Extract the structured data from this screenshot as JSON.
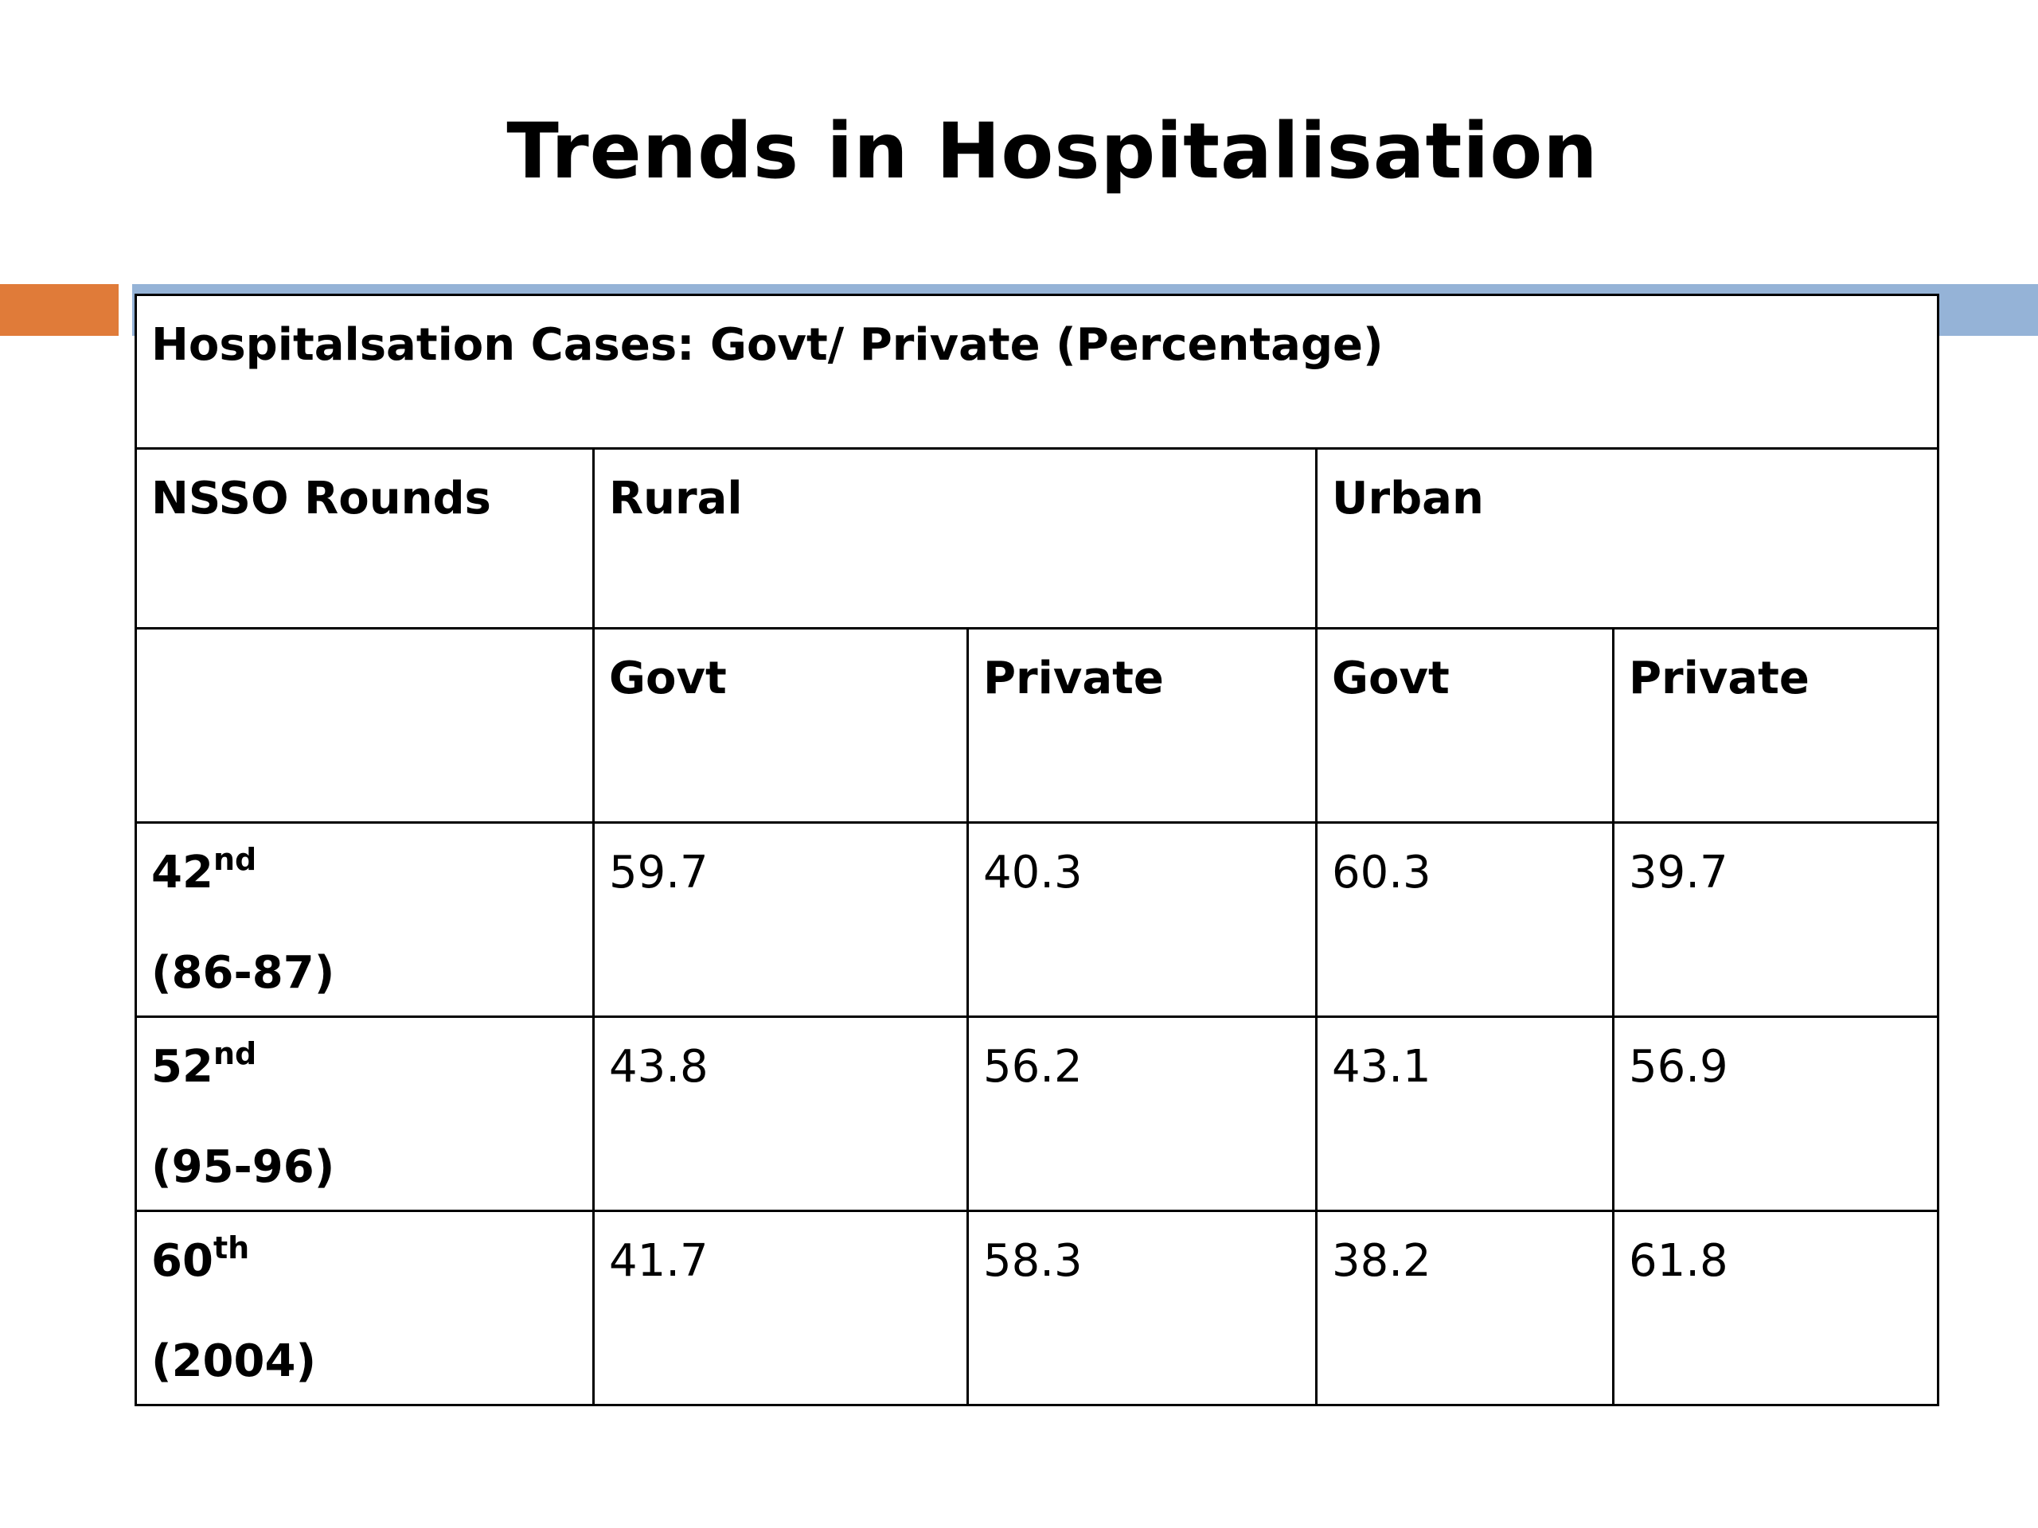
{
  "slide": {
    "title": "Trends in Hospitalisation"
  },
  "colors": {
    "accent_orange": "#E07B39",
    "accent_blue": "#95B3D7",
    "border": "#000000"
  },
  "table": {
    "caption": "Hospitalsation Cases: Govt/ Private  (Percentage)",
    "headers": {
      "rounds": "NSSO Rounds",
      "rural": "Rural",
      "urban": "Urban"
    },
    "subheaders": [
      "Govt",
      "Private",
      "Govt",
      "Private"
    ],
    "rows": [
      {
        "round": "42",
        "suffix": "nd",
        "period": "(86-87)",
        "values": [
          "59.7",
          "40.3",
          "60.3",
          "39.7"
        ]
      },
      {
        "round": "52",
        "suffix": "nd",
        "period": "(95-96)",
        "values": [
          "43.8",
          "56.2",
          "43.1",
          "56.9"
        ]
      },
      {
        "round": "60",
        "suffix": "th",
        "period": "(2004)",
        "values": [
          "41.7",
          "58.3",
          "38.2",
          "61.8"
        ]
      }
    ]
  }
}
